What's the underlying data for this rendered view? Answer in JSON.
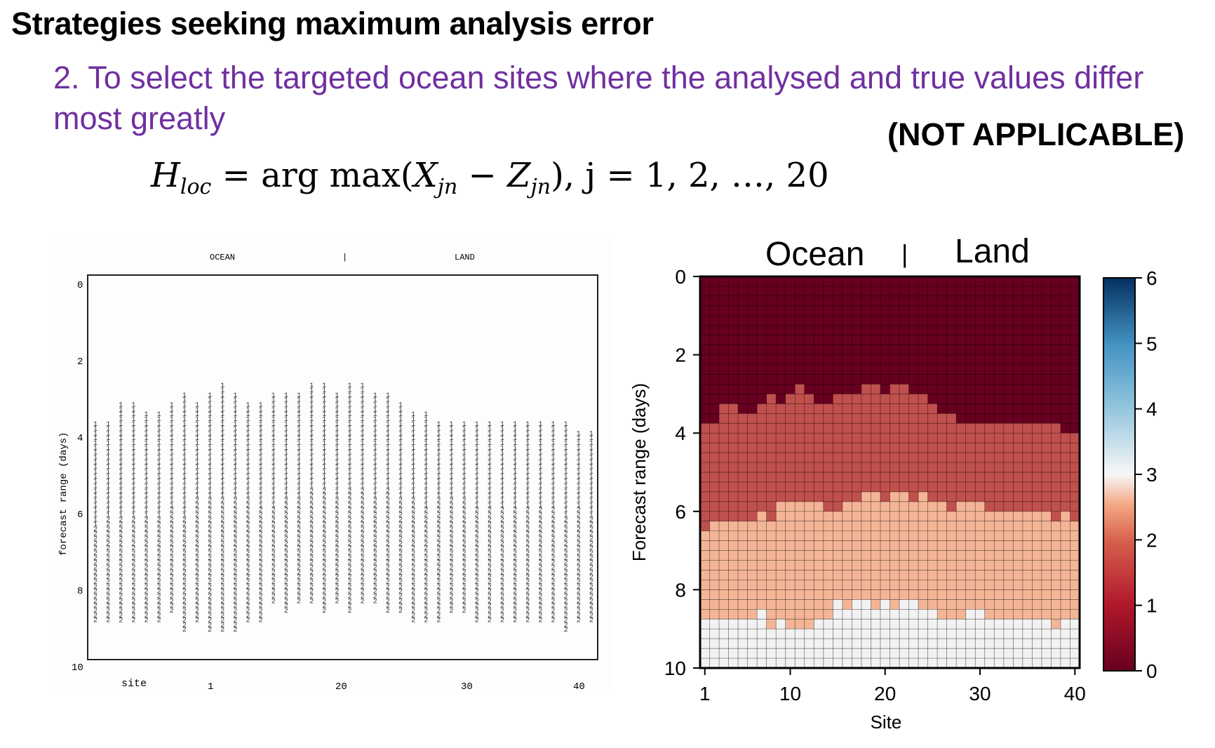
{
  "header": {
    "title": "Strategies seeking maximum analysis error",
    "subtitle": "2. To select the targeted ocean sites where the analysed and true values differ most greatly",
    "status": "(NOT APPLICABLE)"
  },
  "formula": {
    "lhs": "H",
    "lhs_sub": "loc",
    "eq": "= arg max(",
    "x": "X",
    "x_sub": "jn",
    "minus": " − ",
    "z": "Z",
    "z_sub": "jn",
    "tail": "),  j = 1, 2, …, 20"
  },
  "left_figure": {
    "ocean_label": "OCEAN",
    "divider_label": "|",
    "land_label": "LAND",
    "ylabel": "forecast range (days)",
    "yticks": [
      "0",
      "2",
      "4",
      "6",
      "8",
      "10"
    ],
    "site_label": "site",
    "xticks": [
      "1",
      "20",
      "30",
      "40"
    ]
  },
  "chart_data": {
    "type": "heatmap",
    "ocean_label": "Ocean",
    "divider_label": "|",
    "land_label": "Land",
    "xlabel": "Site",
    "ylabel": "Forecast range (days)",
    "x_range": [
      1,
      40
    ],
    "y_range": [
      0,
      10
    ],
    "x_ticks": [
      "1",
      "10",
      "20",
      "30",
      "40"
    ],
    "y_ticks": [
      "0",
      "2",
      "4",
      "6",
      "8",
      "10"
    ],
    "cell_size_days": 0.25,
    "colorbar": {
      "min": 0,
      "max": 6,
      "ticks": [
        "0",
        "1",
        "2",
        "3",
        "4",
        "5",
        "6"
      ]
    },
    "level_colors": [
      "#67001f",
      "#c0504d",
      "#f4b596",
      "#f2f2f2"
    ],
    "level_values": [
      0,
      1,
      2,
      3
    ],
    "level_boundaries_days": {
      "level_0_to_1": [
        3.75,
        3.75,
        3.25,
        3.25,
        3.5,
        3.5,
        3.25,
        3.0,
        3.25,
        3.0,
        2.75,
        3.0,
        3.25,
        3.25,
        3.0,
        3.0,
        3.0,
        2.75,
        2.75,
        3.0,
        2.75,
        2.75,
        3.0,
        3.0,
        3.25,
        3.5,
        3.5,
        3.75,
        3.75,
        3.75,
        3.75,
        3.75,
        3.75,
        3.75,
        3.75,
        3.75,
        3.75,
        3.75,
        4.0,
        4.0
      ],
      "level_1_to_2": [
        6.5,
        6.25,
        6.25,
        6.25,
        6.25,
        6.25,
        6.0,
        6.25,
        5.75,
        5.75,
        5.75,
        5.75,
        5.75,
        6.0,
        6.0,
        5.75,
        5.75,
        5.5,
        5.5,
        5.75,
        5.5,
        5.5,
        5.75,
        5.5,
        5.75,
        5.75,
        6.0,
        5.75,
        5.75,
        5.75,
        6.0,
        6.0,
        6.0,
        6.0,
        6.0,
        6.0,
        6.0,
        6.25,
        6.0,
        6.25
      ],
      "level_2_to_3": [
        8.75,
        8.75,
        8.75,
        8.75,
        8.75,
        8.75,
        8.5,
        9.0,
        8.75,
        9.0,
        9.0,
        9.0,
        8.75,
        8.75,
        8.25,
        8.5,
        8.25,
        8.25,
        8.5,
        8.25,
        8.5,
        8.25,
        8.25,
        8.5,
        8.5,
        8.75,
        8.75,
        8.75,
        8.5,
        8.5,
        8.75,
        8.75,
        8.75,
        8.75,
        8.75,
        8.75,
        8.75,
        9.0,
        8.75,
        8.75
      ]
    }
  }
}
